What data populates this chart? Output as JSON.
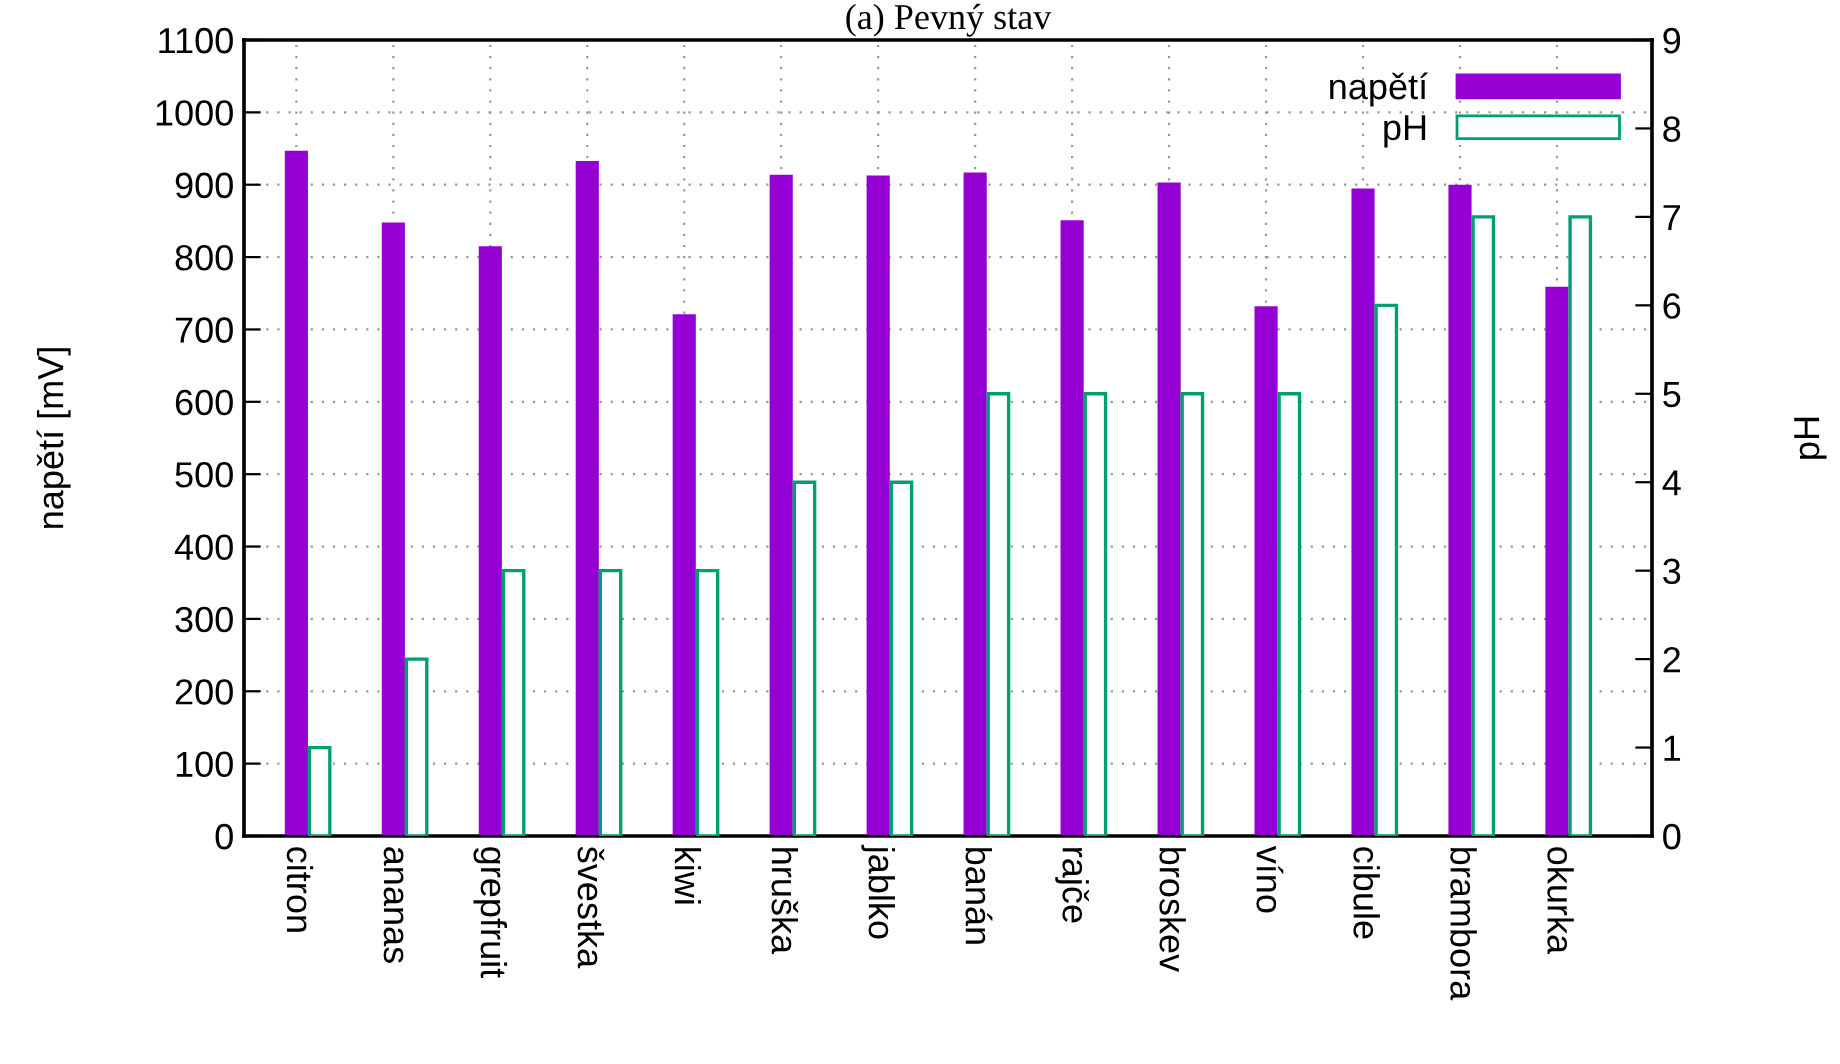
{
  "chart_data": {
    "type": "bar",
    "title": "(a) Pevný stav",
    "ylabel": "napětí [mV]",
    "y2label": "pH",
    "categories": [
      "citron",
      "ananas",
      "grepfruit",
      "švestka",
      "kiwi",
      "hruška",
      "jablko",
      "banán",
      "rajče",
      "broskev",
      "víno",
      "cibule",
      "brambora",
      "okurka"
    ],
    "series": [
      {
        "name": "napětí",
        "color": "#9400d3",
        "values": [
          945,
          846,
          813,
          931,
          719,
          912,
          911,
          915,
          849,
          901,
          730,
          893,
          898,
          757
        ]
      },
      {
        "name": "pH",
        "color": "#009e73",
        "axis": "y2",
        "values": [
          1,
          2,
          3,
          3,
          3,
          4,
          4,
          5,
          5,
          5,
          5,
          6,
          7,
          7
        ]
      }
    ],
    "ylim": [
      0,
      1100
    ],
    "yticks": [
      0,
      100,
      200,
      300,
      400,
      500,
      600,
      700,
      800,
      900,
      1000,
      1100
    ],
    "y2lim": [
      0,
      9
    ],
    "y2ticks": [
      0,
      1,
      2,
      3,
      4,
      5,
      6,
      7,
      8,
      9
    ],
    "grid": true,
    "legend": "top right"
  }
}
